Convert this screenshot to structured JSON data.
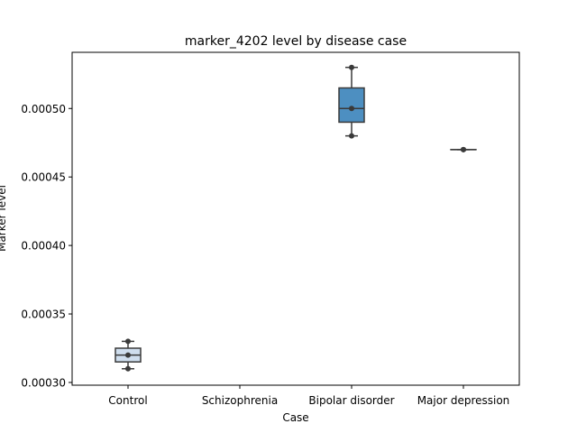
{
  "chart_data": {
    "type": "box",
    "title": "marker_4202 level by disease case",
    "xlabel": "Case",
    "ylabel": "Marker level",
    "categories": [
      "Control",
      "Schizophrenia",
      "Bipolar disorder",
      "Major depression"
    ],
    "ylim": [
      0.000298,
      0.000541
    ],
    "yticks": [
      0.0003,
      0.00035,
      0.0004,
      0.00045,
      0.0005
    ],
    "ytick_labels": [
      "0.00030",
      "0.00035",
      "0.00040",
      "0.00045",
      "0.00050"
    ],
    "grid": false,
    "legend": "none",
    "boxes": [
      {
        "category": "Control",
        "min": 0.00031,
        "q1": 0.000315,
        "median": 0.00032,
        "q3": 0.000325,
        "max": 0.00033,
        "color": "#cfdeee"
      },
      {
        "category": "Schizophrenia",
        "min": null,
        "q1": null,
        "median": null,
        "q3": null,
        "max": null,
        "color": "#8fbbda"
      },
      {
        "category": "Bipolar disorder",
        "min": 0.00048,
        "q1": 0.00049,
        "median": 0.0005,
        "q3": 0.000515,
        "max": 0.00053,
        "color": "#4d8fc1"
      },
      {
        "category": "Major depression",
        "min": 0.00047,
        "q1": 0.00047,
        "median": 0.00047,
        "q3": 0.00047,
        "max": 0.00047,
        "color": "#1f5fa3"
      }
    ]
  }
}
